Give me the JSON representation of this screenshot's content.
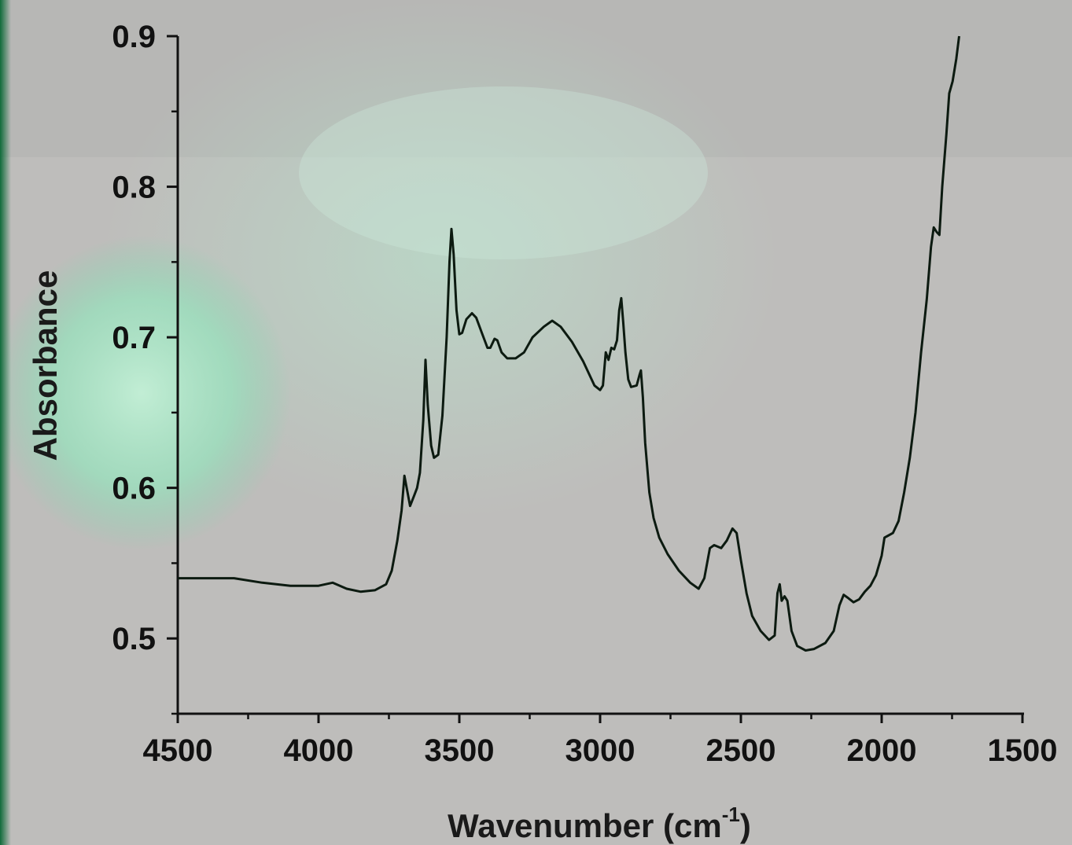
{
  "chart_data": {
    "type": "line",
    "xlabel": "Wavenumber (cm",
    "xlabel_superscript": "-1",
    "xlabel_close": ")",
    "ylabel": "Absorbance",
    "xlim": [
      4500,
      1500
    ],
    "ylim": [
      0.45,
      0.9
    ],
    "x_reversed": true,
    "grid": false,
    "x_ticks": [
      "4500",
      "4000",
      "3500",
      "3000",
      "2500",
      "2000",
      "1500"
    ],
    "y_ticks": [
      "0.5",
      "0.6",
      "0.7",
      "0.8",
      "0.9"
    ],
    "series": [
      {
        "color": "#0c1a10",
        "points": [
          [
            4500,
            0.54
          ],
          [
            4400,
            0.54
          ],
          [
            4300,
            0.54
          ],
          [
            4200,
            0.537
          ],
          [
            4100,
            0.535
          ],
          [
            4000,
            0.535
          ],
          [
            3950,
            0.537
          ],
          [
            3900,
            0.533
          ],
          [
            3850,
            0.531
          ],
          [
            3800,
            0.532
          ],
          [
            3760,
            0.536
          ],
          [
            3740,
            0.545
          ],
          [
            3720,
            0.565
          ],
          [
            3705,
            0.585
          ],
          [
            3695,
            0.608
          ],
          [
            3685,
            0.598
          ],
          [
            3675,
            0.588
          ],
          [
            3660,
            0.595
          ],
          [
            3650,
            0.6
          ],
          [
            3640,
            0.61
          ],
          [
            3628,
            0.645
          ],
          [
            3620,
            0.685
          ],
          [
            3612,
            0.655
          ],
          [
            3600,
            0.628
          ],
          [
            3590,
            0.62
          ],
          [
            3575,
            0.622
          ],
          [
            3560,
            0.648
          ],
          [
            3545,
            0.7
          ],
          [
            3535,
            0.75
          ],
          [
            3528,
            0.772
          ],
          [
            3520,
            0.755
          ],
          [
            3510,
            0.718
          ],
          [
            3500,
            0.702
          ],
          [
            3490,
            0.703
          ],
          [
            3475,
            0.712
          ],
          [
            3455,
            0.716
          ],
          [
            3440,
            0.713
          ],
          [
            3420,
            0.703
          ],
          [
            3400,
            0.693
          ],
          [
            3390,
            0.693
          ],
          [
            3375,
            0.699
          ],
          [
            3365,
            0.698
          ],
          [
            3350,
            0.69
          ],
          [
            3330,
            0.686
          ],
          [
            3300,
            0.686
          ],
          [
            3270,
            0.69
          ],
          [
            3240,
            0.7
          ],
          [
            3200,
            0.707
          ],
          [
            3170,
            0.711
          ],
          [
            3140,
            0.707
          ],
          [
            3100,
            0.697
          ],
          [
            3060,
            0.684
          ],
          [
            3020,
            0.668
          ],
          [
            3000,
            0.665
          ],
          [
            2990,
            0.668
          ],
          [
            2980,
            0.69
          ],
          [
            2970,
            0.685
          ],
          [
            2960,
            0.693
          ],
          [
            2950,
            0.692
          ],
          [
            2940,
            0.698
          ],
          [
            2932,
            0.718
          ],
          [
            2925,
            0.726
          ],
          [
            2918,
            0.71
          ],
          [
            2910,
            0.69
          ],
          [
            2900,
            0.672
          ],
          [
            2890,
            0.667
          ],
          [
            2870,
            0.668
          ],
          [
            2860,
            0.675
          ],
          [
            2855,
            0.678
          ],
          [
            2848,
            0.66
          ],
          [
            2840,
            0.63
          ],
          [
            2825,
            0.597
          ],
          [
            2810,
            0.58
          ],
          [
            2790,
            0.567
          ],
          [
            2760,
            0.556
          ],
          [
            2720,
            0.545
          ],
          [
            2680,
            0.537
          ],
          [
            2650,
            0.533
          ],
          [
            2630,
            0.54
          ],
          [
            2610,
            0.56
          ],
          [
            2595,
            0.562
          ],
          [
            2570,
            0.56
          ],
          [
            2550,
            0.565
          ],
          [
            2530,
            0.573
          ],
          [
            2515,
            0.57
          ],
          [
            2500,
            0.552
          ],
          [
            2480,
            0.53
          ],
          [
            2460,
            0.515
          ],
          [
            2430,
            0.505
          ],
          [
            2400,
            0.499
          ],
          [
            2380,
            0.502
          ],
          [
            2370,
            0.53
          ],
          [
            2362,
            0.536
          ],
          [
            2355,
            0.525
          ],
          [
            2345,
            0.528
          ],
          [
            2335,
            0.525
          ],
          [
            2320,
            0.505
          ],
          [
            2300,
            0.495
          ],
          [
            2270,
            0.492
          ],
          [
            2240,
            0.493
          ],
          [
            2200,
            0.497
          ],
          [
            2170,
            0.505
          ],
          [
            2150,
            0.522
          ],
          [
            2135,
            0.529
          ],
          [
            2120,
            0.527
          ],
          [
            2100,
            0.524
          ],
          [
            2080,
            0.526
          ],
          [
            2060,
            0.531
          ],
          [
            2040,
            0.535
          ],
          [
            2020,
            0.542
          ],
          [
            2000,
            0.555
          ],
          [
            1990,
            0.567
          ],
          [
            1980,
            0.568
          ],
          [
            1960,
            0.57
          ],
          [
            1940,
            0.578
          ],
          [
            1920,
            0.597
          ],
          [
            1900,
            0.62
          ],
          [
            1880,
            0.65
          ],
          [
            1860,
            0.69
          ],
          [
            1840,
            0.725
          ],
          [
            1825,
            0.76
          ],
          [
            1815,
            0.773
          ],
          [
            1805,
            0.77
          ],
          [
            1795,
            0.768
          ],
          [
            1785,
            0.8
          ],
          [
            1770,
            0.835
          ],
          [
            1760,
            0.862
          ],
          [
            1748,
            0.87
          ],
          [
            1735,
            0.885
          ],
          [
            1725,
            0.9
          ]
        ]
      }
    ]
  }
}
